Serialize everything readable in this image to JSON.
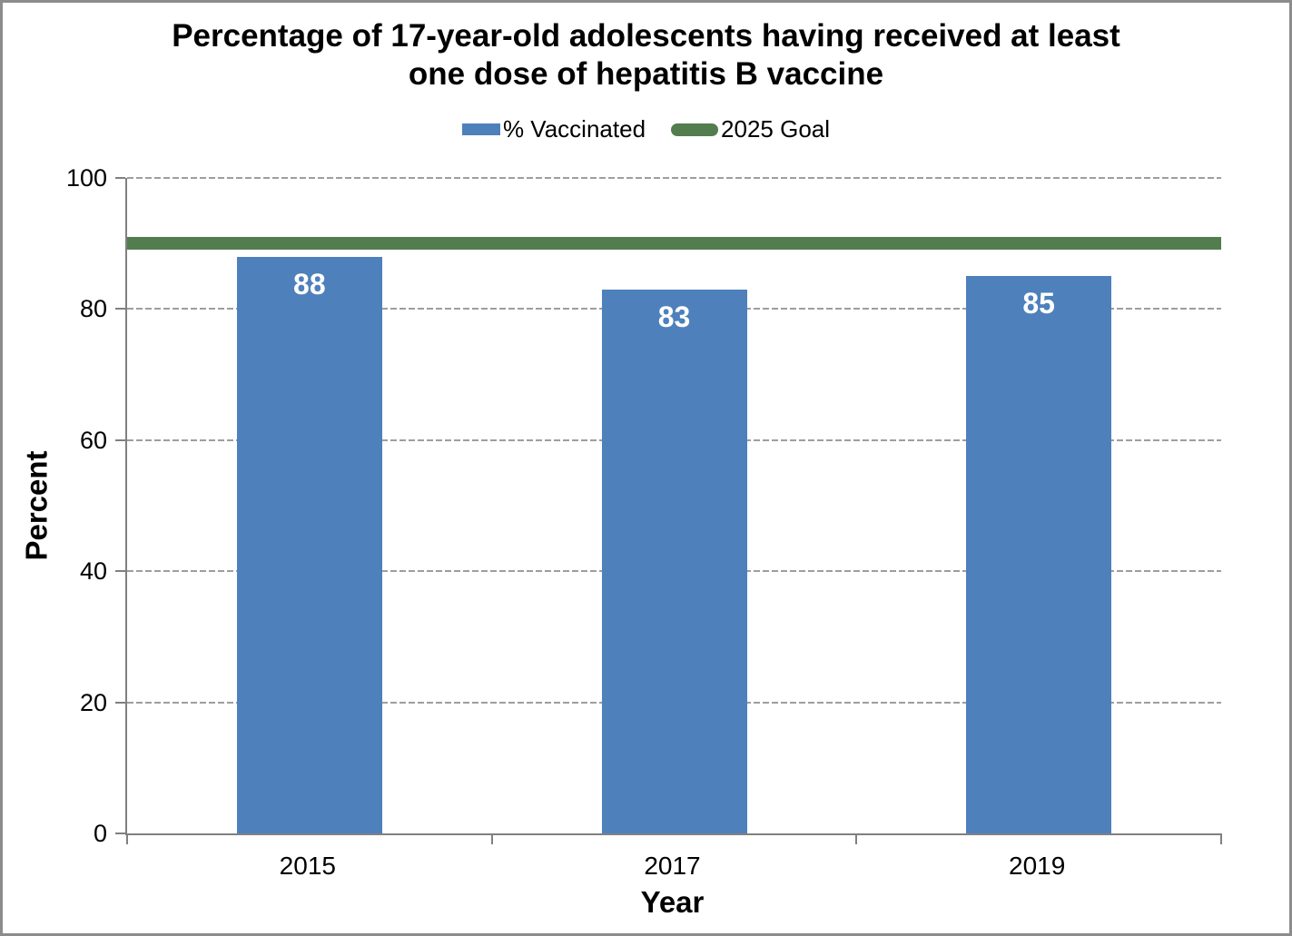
{
  "title": {
    "line1": "Percentage of 17-year-old adolescents having received at least",
    "line2": "one dose of hepatitis B vaccine"
  },
  "legend": {
    "items": [
      {
        "label": "% Vaccinated",
        "swatch": "bar",
        "color": "#4E80BC"
      },
      {
        "label": "2025 Goal",
        "swatch": "line",
        "color": "#537D4F"
      }
    ]
  },
  "colors": {
    "bar": "#4E80BC",
    "goal": "#537D4F",
    "axis": "#808080",
    "gridline": "#9E9E9E",
    "bar_label": "#FFFFFF"
  },
  "chart_data": {
    "type": "bar",
    "title": "Percentage of 17-year-old adolescents having received at least one dose of hepatitis B vaccine",
    "categories": [
      "2015",
      "2017",
      "2019"
    ],
    "series": [
      {
        "name": "% Vaccinated",
        "values": [
          88,
          83,
          85
        ]
      }
    ],
    "data_labels": [
      "88",
      "83",
      "85"
    ],
    "goal_line": {
      "name": "2025 Goal",
      "value": 90
    },
    "xlabel": "Year",
    "ylabel": "Percent",
    "ylim": [
      0,
      100
    ],
    "yticks": [
      0,
      20,
      40,
      60,
      80,
      100
    ],
    "grid": true,
    "gridline_style": "dashed",
    "legend_position": "top-center"
  }
}
